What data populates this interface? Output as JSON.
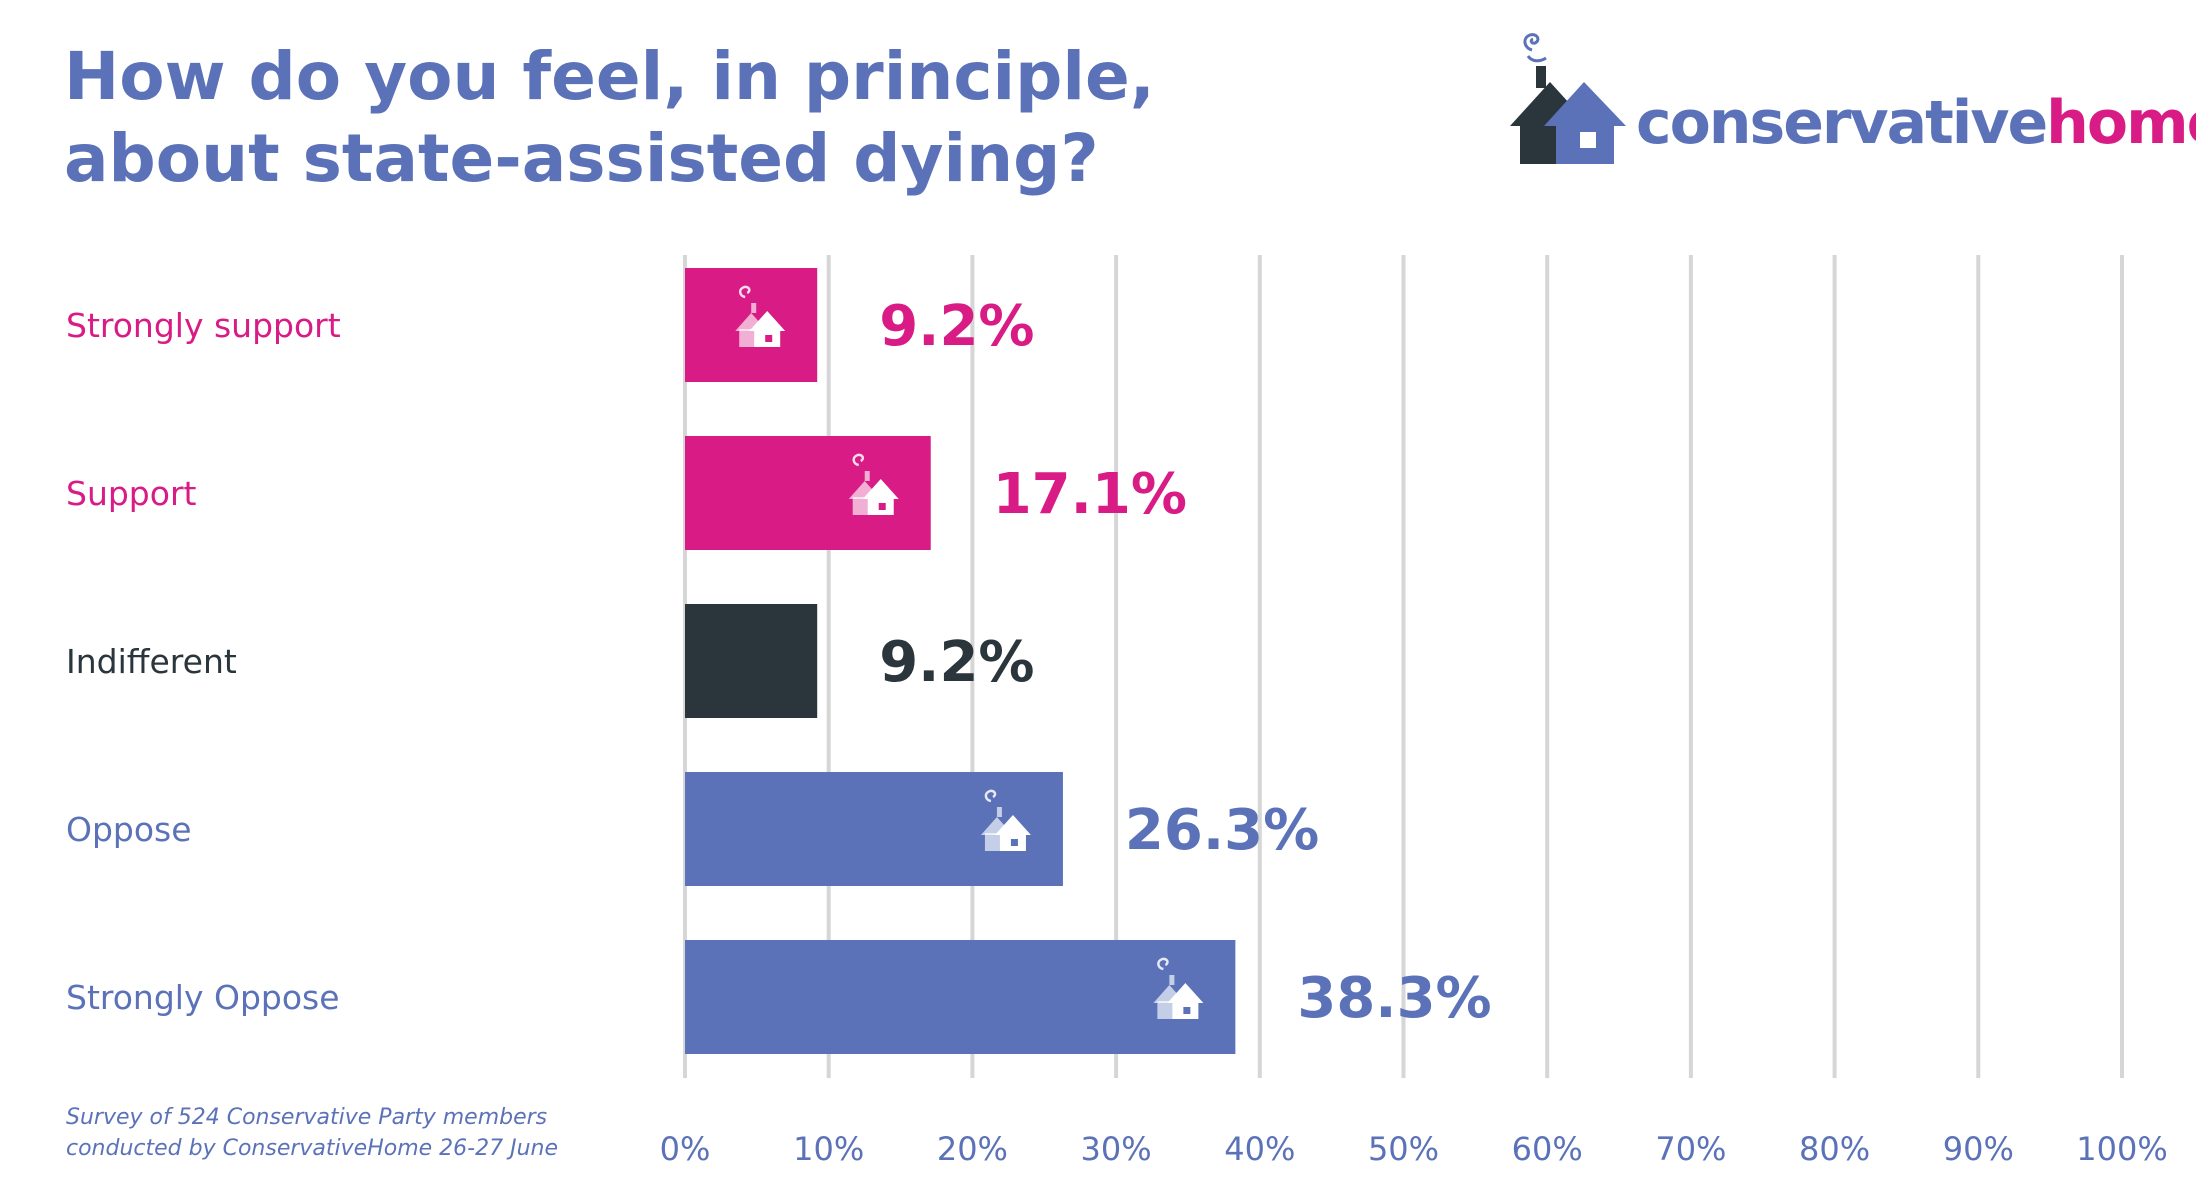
{
  "title": {
    "line1": "How do you feel, in principle,",
    "line2": "about state-assisted dying?"
  },
  "logo": {
    "icon": "house-icon",
    "word1": "conservative",
    "word2": "home",
    "colors": {
      "word1": "#5b72b9",
      "word2": "#d81b85"
    }
  },
  "note": {
    "line1": "Survey of 524 Conservative Party members",
    "line2": "conducted by ConservativeHome 26-27 June"
  },
  "chart_data": {
    "type": "bar",
    "orientation": "horizontal",
    "title": "How do you feel, in principle, about state-assisted dying?",
    "categories": [
      "Strongly support",
      "Support",
      "Indifferent",
      "Oppose",
      "Strongly Oppose"
    ],
    "values": [
      9.2,
      17.1,
      9.2,
      26.3,
      38.3
    ],
    "value_labels": [
      "9.2%",
      "17.1%",
      "9.2%",
      "26.3%",
      "38.3%"
    ],
    "colors": [
      "#d81b85",
      "#d81b85",
      "#2b353c",
      "#5b72b9",
      "#5b72b9"
    ],
    "xlim": [
      0,
      100
    ],
    "xticks": [
      0,
      10,
      20,
      30,
      40,
      50,
      60,
      70,
      80,
      90,
      100
    ],
    "xtick_labels": [
      "0%",
      "10%",
      "20%",
      "30%",
      "40%",
      "50%",
      "60%",
      "70%",
      "80%",
      "90%",
      "100%"
    ],
    "grid": true,
    "bar_icons": [
      "house-icon",
      "house-icon",
      "",
      "house-icon",
      "house-icon"
    ]
  }
}
